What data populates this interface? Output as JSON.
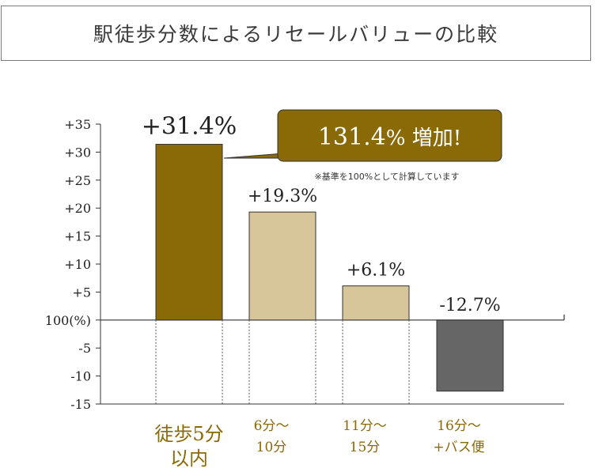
{
  "chart_data": {
    "type": "bar",
    "title": "駅徒歩分数によるリセールバリューの比較",
    "categories": [
      [
        "徒歩5分",
        "以内"
      ],
      [
        "6分〜",
        "10分"
      ],
      [
        "11分〜",
        "15分"
      ],
      [
        "16分〜",
        "+バス便"
      ]
    ],
    "values": [
      31.4,
      19.3,
      6.1,
      -12.7
    ],
    "value_labels": [
      "+31.4%",
      "+19.3%",
      "+6.1%",
      "-12.7%"
    ],
    "yticks": [
      35,
      30,
      25,
      20,
      15,
      10,
      5,
      0,
      -5,
      -10,
      -15
    ],
    "ytick_labels": [
      "+35",
      "+30",
      "+25",
      "+20",
      "+15",
      "+10",
      "+5",
      "100(%)",
      "-5",
      "-10",
      "-15"
    ],
    "ylim": [
      -15,
      35
    ],
    "grid": false,
    "callout": {
      "text_number": "131.4",
      "text_unit": "% 増加!",
      "note": "※基準を100%として計算しています"
    },
    "colors": {
      "highlight": "#8a6a06",
      "light": "#d8c69b",
      "negative": "#666666",
      "highlight_label": "#8a6a06",
      "normal_label": "#8a6a06"
    }
  }
}
